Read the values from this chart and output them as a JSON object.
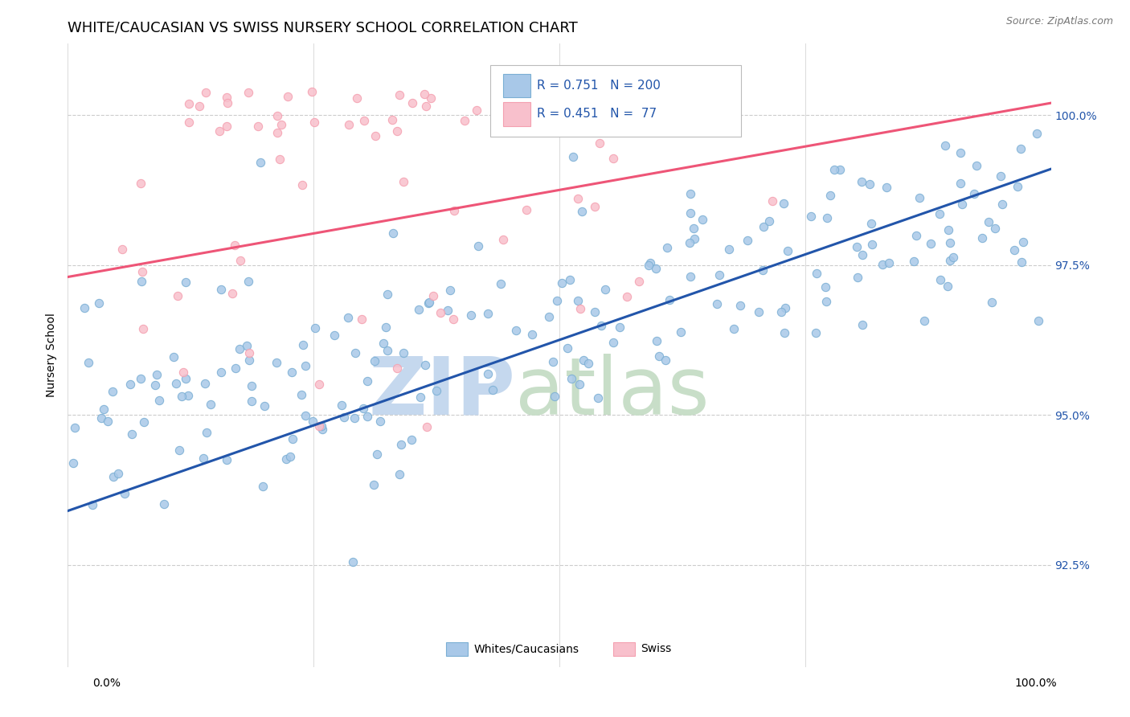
{
  "title": "WHITE/CAUCASIAN VS SWISS NURSERY SCHOOL CORRELATION CHART",
  "source": "Source: ZipAtlas.com",
  "ylabel": "Nursery School",
  "ytick_labels": [
    "92.5%",
    "95.0%",
    "97.5%",
    "100.0%"
  ],
  "ytick_values": [
    0.925,
    0.95,
    0.975,
    1.0
  ],
  "xlim": [
    0.0,
    1.0
  ],
  "ylim": [
    0.908,
    1.012
  ],
  "blue_R": 0.751,
  "blue_N": 200,
  "pink_R": 0.451,
  "pink_N": 77,
  "blue_color": "#7BAFD4",
  "pink_color": "#F4A0B0",
  "blue_fill_color": "#A8C8E8",
  "pink_fill_color": "#F8C0CC",
  "blue_line_color": "#2255AA",
  "pink_line_color": "#EE5577",
  "legend_text_color": "#2255AA",
  "watermark_ZIP_color": "#C5D8EE",
  "watermark_atlas_color": "#C8DEC8",
  "background_color": "#FFFFFF",
  "grid_color": "#CCCCCC",
  "title_fontsize": 13,
  "axis_label_fontsize": 10,
  "tick_label_fontsize": 10,
  "right_tick_color": "#2255AA",
  "blue_scatter_seed": 42,
  "pink_scatter_seed": 99,
  "blue_trendline": [
    0.0,
    0.934,
    1.0,
    0.991
  ],
  "pink_trendline": [
    0.0,
    0.973,
    1.0,
    1.002
  ]
}
